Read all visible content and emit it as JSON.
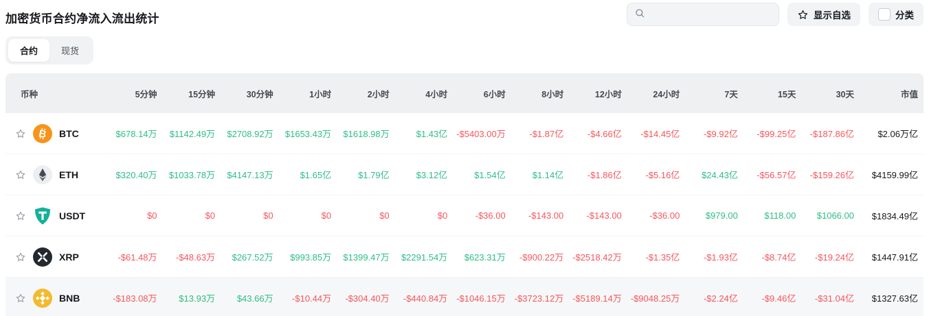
{
  "page": {
    "title": "加密货币合约净流入流出统计",
    "tabs": [
      {
        "label": "合约",
        "active": true
      },
      {
        "label": "现货",
        "active": false
      }
    ],
    "toolbar": {
      "search_placeholder": "",
      "search_icon": "search-icon",
      "show_favorites_label": "显示自选",
      "show_favorites_icon": "star-icon",
      "category_label": "分类",
      "category_checkbox_checked": false
    }
  },
  "colors": {
    "positive": "#2ebd85",
    "negative": "#f6565c",
    "header_bg": "#eef0f2",
    "btc": "#f7931a",
    "eth_bg": "#eceef1",
    "usdt": "#13b198",
    "xrp": "#23292f",
    "bnb": "#f3ba2f"
  },
  "table": {
    "columns": [
      "币种",
      "5分钟",
      "15分钟",
      "30分钟",
      "1小时",
      "2小时",
      "4小时",
      "6小时",
      "8小时",
      "12小时",
      "24小时",
      "7天",
      "15天",
      "30天",
      "市值"
    ],
    "rows": [
      {
        "symbol": "BTC",
        "icon": "btc-icon",
        "favorited": false,
        "highlighted": false,
        "flows": [
          {
            "text": "$678.14万",
            "tone": "pos"
          },
          {
            "text": "$1142.49万",
            "tone": "pos"
          },
          {
            "text": "$2708.92万",
            "tone": "pos"
          },
          {
            "text": "$1653.43万",
            "tone": "pos"
          },
          {
            "text": "$1618.98万",
            "tone": "pos"
          },
          {
            "text": "$1.43亿",
            "tone": "pos"
          },
          {
            "text": "-$5403.00万",
            "tone": "neg"
          },
          {
            "text": "-$1.87亿",
            "tone": "neg"
          },
          {
            "text": "-$4.66亿",
            "tone": "neg"
          },
          {
            "text": "-$14.45亿",
            "tone": "neg"
          },
          {
            "text": "-$9.92亿",
            "tone": "neg"
          },
          {
            "text": "-$99.25亿",
            "tone": "neg"
          },
          {
            "text": "-$187.86亿",
            "tone": "neg"
          }
        ],
        "market_cap": "$2.06万亿"
      },
      {
        "symbol": "ETH",
        "icon": "eth-icon",
        "favorited": false,
        "highlighted": false,
        "flows": [
          {
            "text": "$320.40万",
            "tone": "pos"
          },
          {
            "text": "$1033.78万",
            "tone": "pos"
          },
          {
            "text": "$4147.13万",
            "tone": "pos"
          },
          {
            "text": "$1.65亿",
            "tone": "pos"
          },
          {
            "text": "$1.79亿",
            "tone": "pos"
          },
          {
            "text": "$3.12亿",
            "tone": "pos"
          },
          {
            "text": "$1.54亿",
            "tone": "pos"
          },
          {
            "text": "$1.14亿",
            "tone": "pos"
          },
          {
            "text": "-$1.86亿",
            "tone": "neg"
          },
          {
            "text": "-$5.16亿",
            "tone": "neg"
          },
          {
            "text": "$24.43亿",
            "tone": "pos"
          },
          {
            "text": "-$56.57亿",
            "tone": "neg"
          },
          {
            "text": "-$159.26亿",
            "tone": "neg"
          }
        ],
        "market_cap": "$4159.99亿"
      },
      {
        "symbol": "USDT",
        "icon": "usdt-icon",
        "favorited": false,
        "highlighted": false,
        "flows": [
          {
            "text": "$0",
            "tone": "neg"
          },
          {
            "text": "$0",
            "tone": "neg"
          },
          {
            "text": "$0",
            "tone": "neg"
          },
          {
            "text": "$0",
            "tone": "neg"
          },
          {
            "text": "$0",
            "tone": "neg"
          },
          {
            "text": "$0",
            "tone": "neg"
          },
          {
            "text": "-$36.00",
            "tone": "neg"
          },
          {
            "text": "-$143.00",
            "tone": "neg"
          },
          {
            "text": "-$143.00",
            "tone": "neg"
          },
          {
            "text": "-$36.00",
            "tone": "neg"
          },
          {
            "text": "$979.00",
            "tone": "pos"
          },
          {
            "text": "$118.00",
            "tone": "pos"
          },
          {
            "text": "$1066.00",
            "tone": "pos"
          }
        ],
        "market_cap": "$1834.49亿"
      },
      {
        "symbol": "XRP",
        "icon": "xrp-icon",
        "favorited": false,
        "highlighted": false,
        "flows": [
          {
            "text": "-$61.48万",
            "tone": "neg"
          },
          {
            "text": "-$48.63万",
            "tone": "neg"
          },
          {
            "text": "$267.52万",
            "tone": "pos"
          },
          {
            "text": "$993.85万",
            "tone": "pos"
          },
          {
            "text": "$1399.47万",
            "tone": "pos"
          },
          {
            "text": "$2291.54万",
            "tone": "pos"
          },
          {
            "text": "$623.31万",
            "tone": "pos"
          },
          {
            "text": "-$900.22万",
            "tone": "neg"
          },
          {
            "text": "-$2518.42万",
            "tone": "neg"
          },
          {
            "text": "-$1.35亿",
            "tone": "neg"
          },
          {
            "text": "-$1.93亿",
            "tone": "neg"
          },
          {
            "text": "-$8.74亿",
            "tone": "neg"
          },
          {
            "text": "-$19.24亿",
            "tone": "neg"
          }
        ],
        "market_cap": "$1447.91亿"
      },
      {
        "symbol": "BNB",
        "icon": "bnb-icon",
        "favorited": false,
        "highlighted": true,
        "flows": [
          {
            "text": "-$183.08万",
            "tone": "neg"
          },
          {
            "text": "$13.93万",
            "tone": "pos"
          },
          {
            "text": "$43.66万",
            "tone": "pos"
          },
          {
            "text": "-$10.44万",
            "tone": "neg"
          },
          {
            "text": "-$304.40万",
            "tone": "neg"
          },
          {
            "text": "-$440.84万",
            "tone": "neg"
          },
          {
            "text": "-$1046.15万",
            "tone": "neg"
          },
          {
            "text": "-$3723.12万",
            "tone": "neg"
          },
          {
            "text": "-$5189.14万",
            "tone": "neg"
          },
          {
            "text": "-$9048.25万",
            "tone": "neg"
          },
          {
            "text": "-$2.24亿",
            "tone": "neg"
          },
          {
            "text": "-$9.46亿",
            "tone": "neg"
          },
          {
            "text": "-$31.04亿",
            "tone": "neg"
          }
        ],
        "market_cap": "$1327.63亿"
      }
    ]
  }
}
